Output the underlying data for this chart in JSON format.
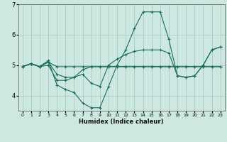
{
  "title": "",
  "xlabel": "Humidex (Indice chaleur)",
  "bg_color": "#cce8e0",
  "grid_color": "#aaccc4",
  "line_color": "#1a6b5a",
  "xlim": [
    -0.5,
    23.5
  ],
  "ylim": [
    3.5,
    7.0
  ],
  "yticks": [
    4,
    5,
    6,
    7
  ],
  "xticks": [
    0,
    1,
    2,
    3,
    4,
    5,
    6,
    7,
    8,
    9,
    10,
    11,
    12,
    13,
    14,
    15,
    16,
    17,
    18,
    19,
    20,
    21,
    22,
    23
  ],
  "lines": [
    {
      "x": [
        0,
        1,
        2,
        3,
        4,
        5,
        6,
        7,
        8,
        9,
        10,
        11,
        12,
        13,
        14,
        15,
        16,
        17,
        18,
        19,
        20,
        21,
        22,
        23
      ],
      "y": [
        4.95,
        5.05,
        4.95,
        5.15,
        4.35,
        4.2,
        4.1,
        3.75,
        3.6,
        3.6,
        4.3,
        5.0,
        5.5,
        6.2,
        6.75,
        6.75,
        6.75,
        5.85,
        4.65,
        4.6,
        4.65,
        5.0,
        5.5,
        5.6
      ]
    },
    {
      "x": [
        0,
        1,
        2,
        3,
        4,
        5,
        6,
        7,
        8,
        9,
        10,
        11,
        12,
        13,
        14,
        15,
        16,
        17,
        18,
        19,
        20,
        21,
        22,
        23
      ],
      "y": [
        4.95,
        5.05,
        4.95,
        5.1,
        4.7,
        4.6,
        4.6,
        4.7,
        4.4,
        4.3,
        5.0,
        5.2,
        5.35,
        5.45,
        5.5,
        5.5,
        5.5,
        5.4,
        4.65,
        4.6,
        4.65,
        5.0,
        5.5,
        5.6
      ]
    },
    {
      "x": [
        0,
        1,
        2,
        3,
        4,
        5,
        6,
        7,
        8,
        9,
        10,
        11,
        12,
        13,
        14,
        15,
        16,
        17,
        18,
        19,
        20,
        21,
        22,
        23
      ],
      "y": [
        4.95,
        5.05,
        4.95,
        5.1,
        4.95,
        4.95,
        4.95,
        4.95,
        4.95,
        4.95,
        4.95,
        4.95,
        4.95,
        4.95,
        4.95,
        4.95,
        4.95,
        4.95,
        4.95,
        4.95,
        4.95,
        4.95,
        4.95,
        4.95
      ]
    },
    {
      "x": [
        0,
        1,
        2,
        3,
        4,
        5,
        6,
        7,
        8,
        9,
        10,
        11,
        12,
        13,
        14,
        15,
        16,
        17,
        18,
        19,
        20,
        21,
        22,
        23
      ],
      "y": [
        4.95,
        5.05,
        4.95,
        5.0,
        4.5,
        4.5,
        4.6,
        4.85,
        4.95,
        4.95,
        4.95,
        4.95,
        4.95,
        4.95,
        4.95,
        4.95,
        4.95,
        4.95,
        4.95,
        4.95,
        4.95,
        4.95,
        4.95,
        4.95
      ]
    }
  ]
}
